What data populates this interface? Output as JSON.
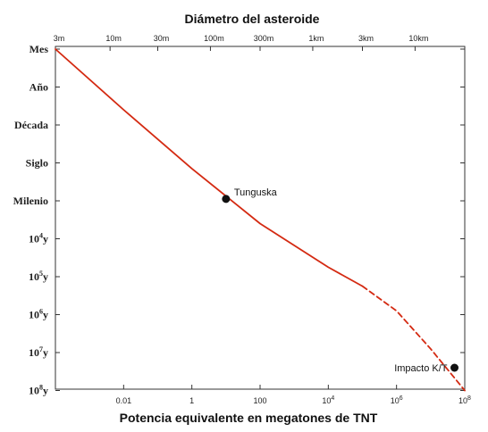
{
  "chart_data": {
    "type": "line",
    "title": "Diámetro del asteroide",
    "xlabel": "Potencia equivalente en megatones de TNT",
    "ylabel": "",
    "x_scale": "log",
    "xlim": [
      0.0001,
      100000000
    ],
    "x_ticks": [
      {
        "value": 0.01,
        "label": "0.01"
      },
      {
        "value": 1,
        "label": "1"
      },
      {
        "value": 100,
        "label": "100"
      },
      {
        "value": 10000,
        "label": "10",
        "sup": "4"
      },
      {
        "value": 1000000,
        "label": "10",
        "sup": "6"
      },
      {
        "value": 100000000,
        "label": "10",
        "sup": "8"
      }
    ],
    "top_axis_label": "Diámetro del asteroide",
    "top_ticks": [
      {
        "value": 0.0001,
        "label": "3m"
      },
      {
        "value": 0.004,
        "label": "10m"
      },
      {
        "value": 0.1,
        "label": "30m"
      },
      {
        "value": 3.5,
        "label": "100m"
      },
      {
        "value": 100,
        "label": "300m"
      },
      {
        "value": 3500,
        "label": "1km"
      },
      {
        "value": 100000,
        "label": "3km"
      },
      {
        "value": 3500000,
        "label": "10km"
      }
    ],
    "y_scale": "log",
    "y_ticks": [
      {
        "label": "Mes",
        "sup": ""
      },
      {
        "label": "Año",
        "sup": ""
      },
      {
        "label": "Década",
        "sup": ""
      },
      {
        "label": "Siglo",
        "sup": ""
      },
      {
        "label": "Milenio",
        "sup": ""
      },
      {
        "label": "10",
        "sup": "4",
        "suffix": "y"
      },
      {
        "label": "10",
        "sup": "5",
        "suffix": "y"
      },
      {
        "label": "10",
        "sup": "6",
        "suffix": "y"
      },
      {
        "label": "10",
        "sup": "7",
        "suffix": "y"
      },
      {
        "label": "10",
        "sup": "8",
        "suffix": "y"
      }
    ],
    "series": [
      {
        "style": "solid",
        "color": "#d42a12",
        "points": [
          {
            "x": 0.0001,
            "y_tick_index": 0
          },
          {
            "x": 0.01,
            "y_tick_index": 1.6
          },
          {
            "x": 1,
            "y_tick_index": 3.15
          },
          {
            "x": 100,
            "y_tick_index": 4.6
          },
          {
            "x": 10000,
            "y_tick_index": 5.75
          },
          {
            "x": 100000,
            "y_tick_index": 6.25
          }
        ]
      },
      {
        "style": "dashed",
        "color": "#d42a12",
        "points": [
          {
            "x": 100000,
            "y_tick_index": 6.25
          },
          {
            "x": 1000000,
            "y_tick_index": 6.9
          },
          {
            "x": 10000000,
            "y_tick_index": 7.9
          },
          {
            "x": 100000000,
            "y_tick_index": 9
          }
        ]
      }
    ],
    "annotations": [
      {
        "label": "Tunguska",
        "x": 10,
        "y_tick_index": 3.95,
        "text_side": "right"
      },
      {
        "label": "Impacto K/T",
        "x": 50000000,
        "y_tick_index": 8.4,
        "text_side": "left"
      }
    ],
    "grid": false,
    "colors": {
      "line": "#d42a12",
      "marker": "#111111",
      "axis": "#333333"
    }
  }
}
